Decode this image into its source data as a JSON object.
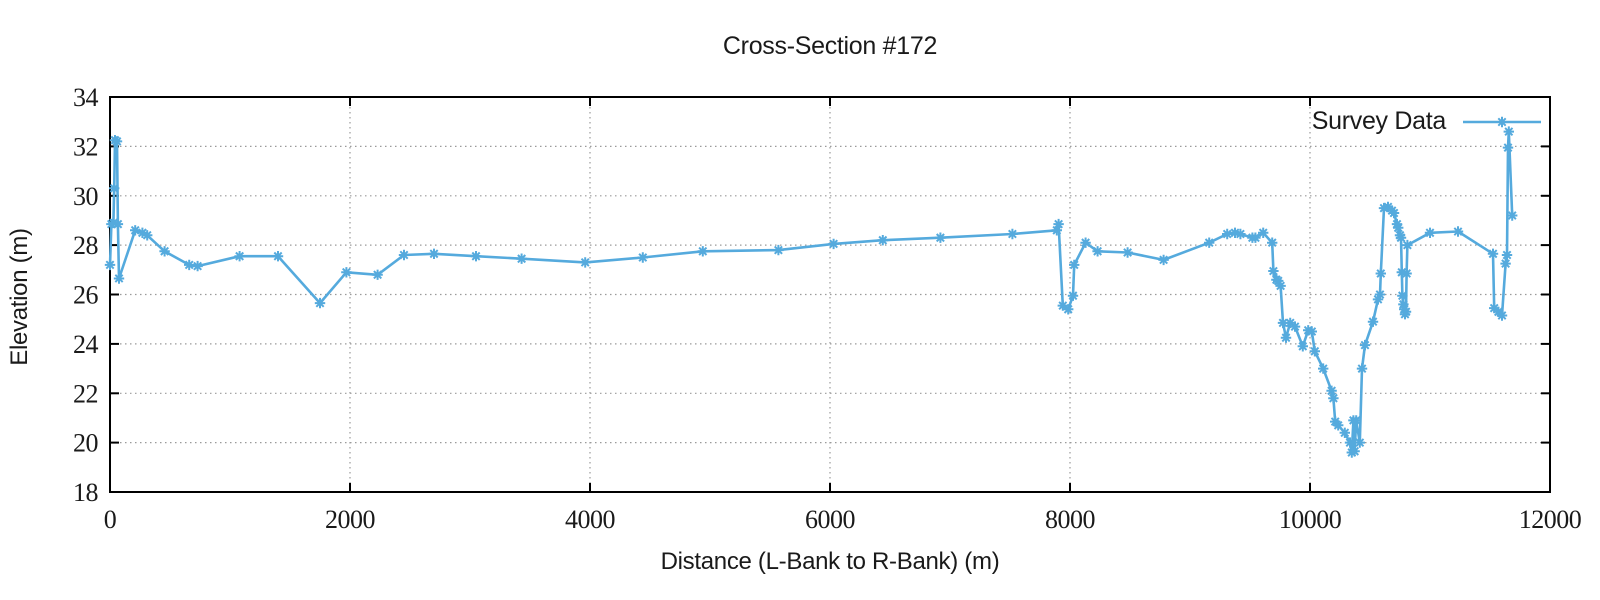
{
  "chart_data": {
    "type": "line",
    "title": "Cross-Section #172",
    "xlabel": "Distance (L-Bank to R-Bank) (m)",
    "ylabel": "Elevation (m)",
    "xlim": [
      0,
      12000
    ],
    "ylim": [
      18,
      34
    ],
    "xticks": [
      0,
      2000,
      4000,
      6000,
      8000,
      10000,
      12000
    ],
    "yticks": [
      18,
      20,
      22,
      24,
      26,
      28,
      30,
      32,
      34
    ],
    "grid": true,
    "legend_position": "top-right-inside",
    "series": [
      {
        "name": "Survey Data",
        "color": "#55AADD",
        "marker": "asterisk",
        "points": [
          [
            0,
            27.2
          ],
          [
            12,
            28.85
          ],
          [
            28,
            28.9
          ],
          [
            35,
            30.3
          ],
          [
            42,
            32.25
          ],
          [
            58,
            32.2
          ],
          [
            66,
            28.85
          ],
          [
            75,
            26.65
          ],
          [
            210,
            28.6
          ],
          [
            270,
            28.5
          ],
          [
            310,
            28.4
          ],
          [
            455,
            27.75
          ],
          [
            660,
            27.2
          ],
          [
            730,
            27.15
          ],
          [
            1080,
            27.55
          ],
          [
            1400,
            27.55
          ],
          [
            1750,
            25.65
          ],
          [
            1970,
            26.9
          ],
          [
            2230,
            26.8
          ],
          [
            2450,
            27.6
          ],
          [
            2700,
            27.65
          ],
          [
            3050,
            27.55
          ],
          [
            3430,
            27.45
          ],
          [
            3960,
            27.3
          ],
          [
            4440,
            27.5
          ],
          [
            4940,
            27.75
          ],
          [
            5570,
            27.8
          ],
          [
            6030,
            28.05
          ],
          [
            6440,
            28.2
          ],
          [
            6920,
            28.3
          ],
          [
            7520,
            28.45
          ],
          [
            7890,
            28.6
          ],
          [
            7905,
            28.85
          ],
          [
            7940,
            25.55
          ],
          [
            7985,
            25.4
          ],
          [
            8025,
            25.95
          ],
          [
            8035,
            27.2
          ],
          [
            8130,
            28.1
          ],
          [
            8230,
            27.75
          ],
          [
            8480,
            27.7
          ],
          [
            8780,
            27.4
          ],
          [
            9160,
            28.1
          ],
          [
            9310,
            28.45
          ],
          [
            9375,
            28.5
          ],
          [
            9420,
            28.45
          ],
          [
            9520,
            28.3
          ],
          [
            9545,
            28.3
          ],
          [
            9610,
            28.5
          ],
          [
            9685,
            28.1
          ],
          [
            9695,
            26.95
          ],
          [
            9720,
            26.6
          ],
          [
            9735,
            26.55
          ],
          [
            9755,
            26.35
          ],
          [
            9775,
            24.85
          ],
          [
            9800,
            24.25
          ],
          [
            9835,
            24.85
          ],
          [
            9875,
            24.7
          ],
          [
            9940,
            23.9
          ],
          [
            9985,
            24.55
          ],
          [
            10015,
            24.5
          ],
          [
            10040,
            23.7
          ],
          [
            10110,
            23.0
          ],
          [
            10180,
            22.1
          ],
          [
            10195,
            21.8
          ],
          [
            10210,
            20.85
          ],
          [
            10235,
            20.7
          ],
          [
            10290,
            20.4
          ],
          [
            10333,
            20.0
          ],
          [
            10348,
            19.6
          ],
          [
            10362,
            20.9
          ],
          [
            10372,
            19.65
          ],
          [
            10385,
            20.9
          ],
          [
            10415,
            20.0
          ],
          [
            10433,
            23.0
          ],
          [
            10458,
            23.95
          ],
          [
            10525,
            24.9
          ],
          [
            10567,
            25.8
          ],
          [
            10583,
            26.0
          ],
          [
            10590,
            26.85
          ],
          [
            10617,
            29.5
          ],
          [
            10650,
            29.55
          ],
          [
            10683,
            29.4
          ],
          [
            10700,
            29.3
          ],
          [
            10725,
            28.85
          ],
          [
            10735,
            28.7
          ],
          [
            10750,
            28.4
          ],
          [
            10758,
            28.3
          ],
          [
            10765,
            26.9
          ],
          [
            10770,
            25.95
          ],
          [
            10778,
            25.6
          ],
          [
            10785,
            25.4
          ],
          [
            10792,
            25.2
          ],
          [
            10800,
            25.3
          ],
          [
            10805,
            26.85
          ],
          [
            10812,
            28.0
          ],
          [
            11000,
            28.5
          ],
          [
            11233,
            28.55
          ],
          [
            11525,
            27.65
          ],
          [
            11535,
            25.45
          ],
          [
            11570,
            25.3
          ],
          [
            11600,
            25.15
          ],
          [
            11630,
            27.25
          ],
          [
            11642,
            27.6
          ],
          [
            11650,
            31.95
          ],
          [
            11657,
            32.6
          ],
          [
            11685,
            29.2
          ]
        ]
      }
    ],
    "colors": {
      "series": "#55AADD",
      "grid": "#9a9a9a",
      "axis": "#000000",
      "text": "#1a1a1a"
    }
  },
  "legend": {
    "label": "Survey Data"
  }
}
